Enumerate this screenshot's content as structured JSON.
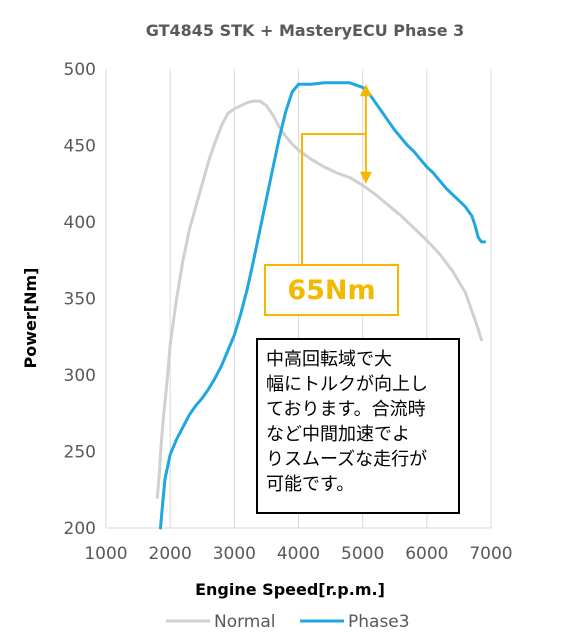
{
  "chart_data": {
    "type": "line",
    "title": "GT4845 STK + MasteryECU Phase 3",
    "xlabel": "Engine Speed[r.p.m.]",
    "ylabel": "Power[Nm]",
    "xlim": [
      1000,
      7000
    ],
    "ylim": [
      200,
      500
    ],
    "x_ticks": [
      "1000",
      "2000",
      "3000",
      "4000",
      "5000",
      "6000",
      "7000"
    ],
    "y_ticks": [
      "200",
      "250",
      "300",
      "350",
      "400",
      "450",
      "500"
    ],
    "grid": "vertical",
    "legend_position": "bottom",
    "series": [
      {
        "name": "Normal",
        "color": "#d0d0d0",
        "points": [
          [
            1800,
            220
          ],
          [
            1830,
            235
          ],
          [
            1860,
            255
          ],
          [
            1900,
            275
          ],
          [
            1950,
            295
          ],
          [
            2000,
            320
          ],
          [
            2100,
            350
          ],
          [
            2200,
            375
          ],
          [
            2300,
            395
          ],
          [
            2400,
            410
          ],
          [
            2500,
            425
          ],
          [
            2600,
            440
          ],
          [
            2700,
            452
          ],
          [
            2800,
            463
          ],
          [
            2900,
            471
          ],
          [
            3000,
            474
          ],
          [
            3100,
            476
          ],
          [
            3200,
            478
          ],
          [
            3300,
            479
          ],
          [
            3400,
            479
          ],
          [
            3500,
            476
          ],
          [
            3600,
            470
          ],
          [
            3700,
            462
          ],
          [
            3800,
            456
          ],
          [
            3900,
            451
          ],
          [
            4000,
            447
          ],
          [
            4200,
            441
          ],
          [
            4400,
            436
          ],
          [
            4600,
            432
          ],
          [
            4800,
            429
          ],
          [
            5000,
            424
          ],
          [
            5200,
            418
          ],
          [
            5400,
            411
          ],
          [
            5600,
            404
          ],
          [
            5800,
            396
          ],
          [
            6000,
            388
          ],
          [
            6200,
            379
          ],
          [
            6400,
            368
          ],
          [
            6600,
            354
          ],
          [
            6800,
            330
          ],
          [
            6850,
            323
          ]
        ]
      },
      {
        "name": "Phase3",
        "color": "#1ea7e1",
        "points": [
          [
            1850,
            200
          ],
          [
            1880,
            215
          ],
          [
            1920,
            232
          ],
          [
            2000,
            248
          ],
          [
            2100,
            258
          ],
          [
            2200,
            266
          ],
          [
            2300,
            274
          ],
          [
            2400,
            280
          ],
          [
            2500,
            285
          ],
          [
            2600,
            291
          ],
          [
            2700,
            298
          ],
          [
            2800,
            306
          ],
          [
            2900,
            316
          ],
          [
            3000,
            326
          ],
          [
            3100,
            340
          ],
          [
            3200,
            356
          ],
          [
            3300,
            375
          ],
          [
            3400,
            395
          ],
          [
            3500,
            415
          ],
          [
            3600,
            435
          ],
          [
            3700,
            455
          ],
          [
            3800,
            472
          ],
          [
            3900,
            485
          ],
          [
            4000,
            490
          ],
          [
            4200,
            490
          ],
          [
            4400,
            491
          ],
          [
            4600,
            491
          ],
          [
            4800,
            491
          ],
          [
            5000,
            488
          ],
          [
            5100,
            484
          ],
          [
            5200,
            478
          ],
          [
            5300,
            472
          ],
          [
            5400,
            466
          ],
          [
            5500,
            460
          ],
          [
            5600,
            455
          ],
          [
            5700,
            450
          ],
          [
            5800,
            446
          ],
          [
            5900,
            441
          ],
          [
            6000,
            436
          ],
          [
            6100,
            432
          ],
          [
            6200,
            427
          ],
          [
            6300,
            422
          ],
          [
            6400,
            418
          ],
          [
            6500,
            414
          ],
          [
            6600,
            410
          ],
          [
            6700,
            404
          ],
          [
            6750,
            398
          ],
          [
            6800,
            390
          ],
          [
            6850,
            387
          ],
          [
            6900,
            387
          ]
        ]
      }
    ],
    "annotations": {
      "difference_label": "65Nm",
      "note": "中高回転域で大\n幅にトルクが向上し\nております。合流時\nなど中間加速でよ\nりスムーズな走行が\n可能です。",
      "arrow_x": 5050,
      "arrow_from": 490,
      "arrow_to": 425,
      "arrow_color": "#f5b800"
    }
  }
}
